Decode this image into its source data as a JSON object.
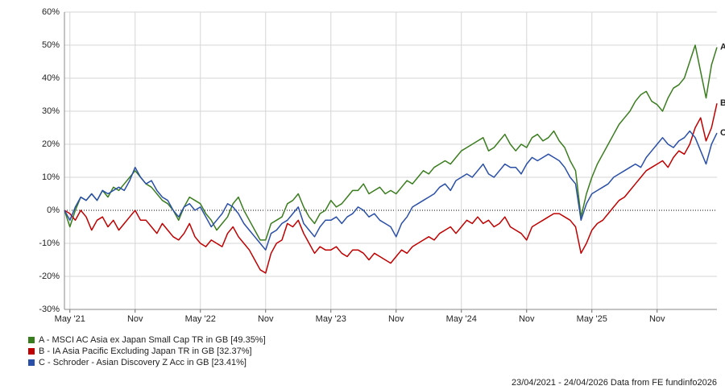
{
  "chart_data": {
    "type": "line",
    "categories": [
      null,
      "May '21",
      null,
      null,
      null,
      null,
      null,
      null,
      null,
      null,
      null,
      null,
      null,
      "Nov",
      null,
      null,
      null,
      null,
      null,
      null,
      null,
      null,
      null,
      null,
      null,
      "May '22",
      null,
      null,
      null,
      null,
      null,
      null,
      null,
      null,
      null,
      null,
      null,
      "Nov",
      null,
      null,
      null,
      null,
      null,
      null,
      null,
      null,
      null,
      null,
      null,
      "May '23",
      null,
      null,
      null,
      null,
      null,
      null,
      null,
      null,
      null,
      null,
      null,
      "Nov",
      null,
      null,
      null,
      null,
      null,
      null,
      null,
      null,
      null,
      null,
      null,
      "May '24",
      null,
      null,
      null,
      null,
      null,
      null,
      null,
      null,
      null,
      null,
      null,
      "Nov",
      null,
      null,
      null,
      null,
      null,
      null,
      null,
      null,
      null,
      null,
      null,
      "May '25",
      null,
      null,
      null,
      null,
      null,
      null,
      null,
      null,
      null,
      null,
      null,
      "Nov",
      null,
      null,
      null,
      null,
      null,
      null,
      null,
      null,
      null,
      null,
      null
    ],
    "series": [
      {
        "name": "A - MSCI AC Asia ex Japan Small Cap TR in GB [49.35%]",
        "end_label": "A",
        "color": "#3a7d1e",
        "values": [
          0,
          -5,
          0,
          4,
          3,
          5,
          3,
          6,
          4,
          7,
          6,
          8,
          10,
          12,
          10,
          8,
          7,
          5,
          3,
          2,
          0,
          -3,
          1,
          4,
          3,
          2,
          -1,
          -3,
          -6,
          -4,
          -2,
          2,
          4,
          0,
          -3,
          -6,
          -9,
          -9,
          -4,
          -3,
          -2,
          2,
          3,
          5,
          1,
          -2,
          -4,
          -1,
          0,
          3,
          1,
          2,
          4,
          6,
          6,
          8,
          5,
          6,
          7,
          5,
          6,
          5,
          7,
          9,
          8,
          10,
          12,
          11,
          13,
          14,
          15,
          14,
          16,
          18,
          19,
          20,
          21,
          22,
          18,
          19,
          21,
          23,
          20,
          18,
          20,
          19,
          22,
          23,
          21,
          22,
          24,
          21,
          19,
          15,
          12,
          -2,
          5,
          10,
          14,
          17,
          20,
          23,
          26,
          28,
          30,
          33,
          35,
          36,
          33,
          32,
          30,
          34,
          37,
          38,
          40,
          45,
          50,
          42,
          34,
          44,
          49.35
        ]
      },
      {
        "name": "B - IA Asia Pacific Excluding Japan TR in GB [32.37%]",
        "end_label": "B",
        "color": "#c00000",
        "values": [
          0,
          -1,
          -3,
          0,
          -2,
          -6,
          -3,
          -2,
          -5,
          -3,
          -6,
          -4,
          -2,
          0,
          -3,
          -3,
          -5,
          -7,
          -4,
          -6,
          -8,
          -9,
          -7,
          -4,
          -8,
          -10,
          -11,
          -9,
          -10,
          -11,
          -7,
          -5,
          -8,
          -10,
          -12,
          -15,
          -18,
          -19,
          -13,
          -10,
          -9,
          -4,
          -5,
          -3,
          -7,
          -10,
          -13,
          -11,
          -12,
          -12,
          -11,
          -13,
          -14,
          -12,
          -12,
          -13,
          -15,
          -13,
          -14,
          -15,
          -16,
          -14,
          -12,
          -13,
          -11,
          -10,
          -9,
          -8,
          -9,
          -7,
          -6,
          -5,
          -7,
          -5,
          -3,
          -4,
          -2,
          -4,
          -3,
          -5,
          -4,
          -2,
          -5,
          -6,
          -7,
          -9,
          -5,
          -4,
          -3,
          -2,
          -1,
          -1,
          -2,
          -3,
          -5,
          -13,
          -10,
          -6,
          -4,
          -3,
          -1,
          1,
          3,
          4,
          6,
          8,
          10,
          12,
          13,
          14,
          15,
          13,
          16,
          18,
          17,
          20,
          25,
          28,
          21,
          25,
          32.37
        ]
      },
      {
        "name": "C - Schroder - Asian Discovery Z Acc in GB [23.41%]",
        "end_label": "C",
        "color": "#2a4fa8",
        "values": [
          0,
          -3,
          1,
          4,
          3,
          5,
          3,
          6,
          5,
          6,
          7,
          6,
          9,
          13,
          10,
          8,
          9,
          6,
          4,
          3,
          0,
          -2,
          1,
          2,
          0,
          1,
          -2,
          -5,
          -3,
          -1,
          2,
          1,
          -1,
          -4,
          -6,
          -8,
          -10,
          -12,
          -7,
          -6,
          -4,
          -3,
          -1,
          1,
          -4,
          -6,
          -8,
          -5,
          -3,
          -3,
          -2,
          -4,
          -2,
          -1,
          1,
          0,
          -2,
          -1,
          -3,
          -4,
          -5,
          -8,
          -4,
          -2,
          1,
          2,
          3,
          4,
          5,
          7,
          8,
          6,
          9,
          10,
          11,
          10,
          12,
          14,
          11,
          10,
          12,
          14,
          13,
          13,
          11,
          14,
          16,
          15,
          16,
          17,
          16,
          15,
          13,
          10,
          8,
          -3,
          2,
          5,
          6,
          7,
          8,
          10,
          11,
          12,
          13,
          14,
          13,
          16,
          18,
          20,
          22,
          20,
          19,
          21,
          22,
          24,
          22,
          18,
          14,
          20,
          23.41
        ]
      }
    ],
    "ylim": [
      -30,
      60
    ],
    "yticks": [
      {
        "value": -30,
        "label": "-30%"
      },
      {
        "value": -20,
        "label": "-20%"
      },
      {
        "value": -10,
        "label": "-10%"
      },
      {
        "value": 0,
        "label": "0%"
      },
      {
        "value": 10,
        "label": "10%"
      },
      {
        "value": 20,
        "label": "20%"
      },
      {
        "value": 30,
        "label": "30%"
      },
      {
        "value": 40,
        "label": "40%"
      },
      {
        "value": 50,
        "label": "50%"
      },
      {
        "value": 60,
        "label": "60%"
      }
    ],
    "grid": true,
    "footer": "23/04/2021 - 24/04/2026 Data from FE fundinfo2026"
  }
}
